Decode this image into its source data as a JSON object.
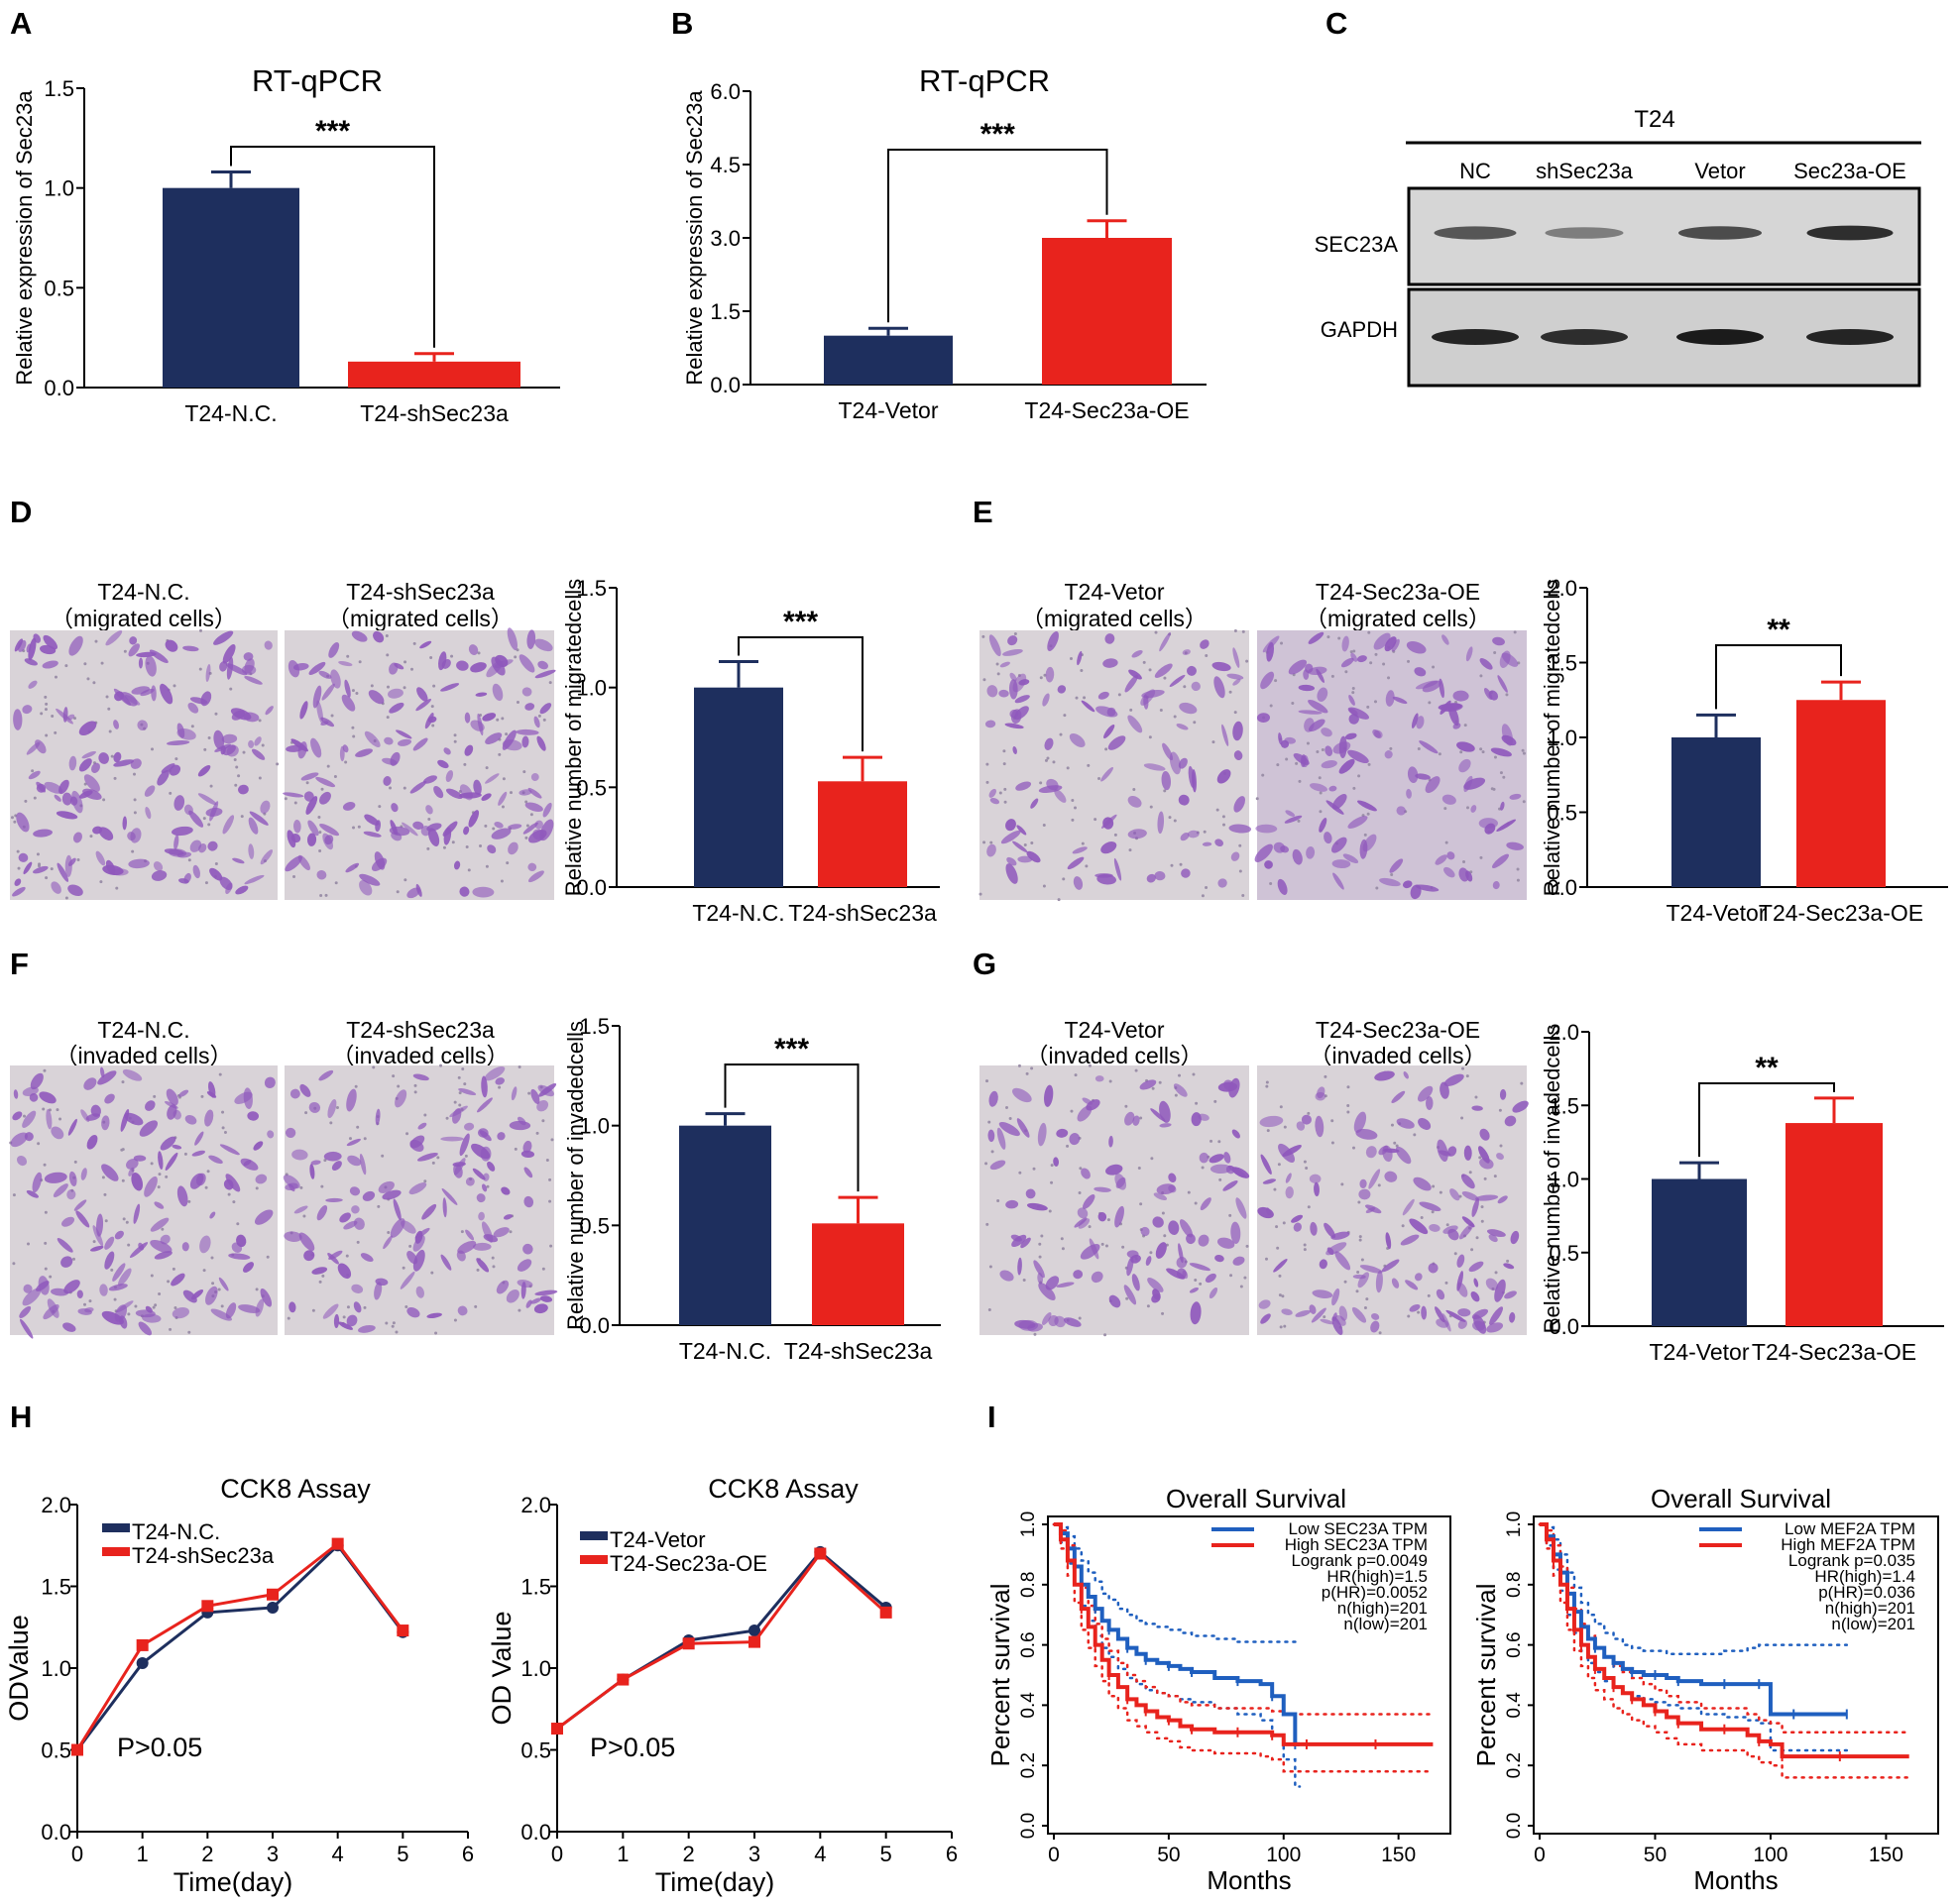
{
  "panel_labels": [
    "A",
    "B",
    "C",
    "D",
    "E",
    "F",
    "G",
    "H",
    "I"
  ],
  "colors": {
    "navy": "#1e2f5e",
    "red": "#e8231d",
    "blue": "#1f5fbf",
    "stain": "#8f58bc",
    "bg": "#d9d3d8"
  },
  "micrographs": {
    "D1": {
      "title": "T24-N.C.",
      "sub": "（migrated cells）"
    },
    "D2": {
      "title": "T24-shSec23a",
      "sub": "（migrated cells）"
    },
    "E1": {
      "title": "T24-Vetor",
      "sub": "（migrated cells）"
    },
    "E2": {
      "title": "T24-Sec23a-OE",
      "sub": "（migrated cells）"
    },
    "F1": {
      "title": "T24-N.C.",
      "sub": "（invaded cells）"
    },
    "F2": {
      "title": "T24-shSec23a",
      "sub": "（invaded cells）"
    },
    "G1": {
      "title": "T24-Vetor",
      "sub": "（invaded cells）"
    },
    "G2": {
      "title": "T24-Sec23a-OE",
      "sub": "（invaded cells）"
    }
  },
  "western_blot": {
    "cell_line": "T24",
    "lanes": [
      "NC",
      "shSec23a",
      "Vetor",
      "Sec23a-OE"
    ],
    "rows": [
      {
        "protein": "SEC23A",
        "intensity": [
          0.65,
          0.45,
          0.7,
          0.85
        ]
      },
      {
        "protein": "GAPDH",
        "intensity": [
          0.9,
          0.85,
          0.95,
          0.9
        ]
      }
    ]
  },
  "chart_data": [
    {
      "id": "A",
      "type": "bar",
      "title": "RT-qPCR",
      "ylabel": "Relative expression of Sec23a",
      "categories": [
        "T24-N.C.",
        "T24-shSec23a"
      ],
      "values": [
        1.0,
        0.13
      ],
      "errors": [
        0.08,
        0.04
      ],
      "colors": [
        "#1e2f5e",
        "#e8231d"
      ],
      "ylim": [
        0,
        1.5
      ],
      "yticks": [
        "0.0",
        "0.5",
        "1.0",
        "1.5"
      ],
      "significance": "***"
    },
    {
      "id": "B",
      "type": "bar",
      "title": "RT-qPCR",
      "ylabel": "Relative expression of Sec23a",
      "categories": [
        "T24-Vetor",
        "T24-Sec23a-OE"
      ],
      "values": [
        1.0,
        3.0
      ],
      "errors": [
        0.15,
        0.35
      ],
      "colors": [
        "#1e2f5e",
        "#e8231d"
      ],
      "ylim": [
        0,
        6.0
      ],
      "yticks": [
        "0.0",
        "1.5",
        "3.0",
        "4.5",
        "6.0"
      ],
      "significance": "***"
    },
    {
      "id": "D",
      "type": "bar",
      "title": "",
      "ylabel": "Relative number of migratedcells",
      "categories": [
        "T24-N.C.",
        "T24-shSec23a"
      ],
      "values": [
        1.0,
        0.53
      ],
      "errors": [
        0.13,
        0.12
      ],
      "colors": [
        "#1e2f5e",
        "#e8231d"
      ],
      "ylim": [
        0,
        1.5
      ],
      "yticks": [
        "0.0",
        "0.5",
        "1.0",
        "1.5"
      ],
      "significance": "***"
    },
    {
      "id": "E",
      "type": "bar",
      "title": "",
      "ylabel": "Relative number of migratedcells",
      "categories": [
        "T24-Vetor",
        "T24-Sec23a-OE"
      ],
      "values": [
        1.0,
        1.25
      ],
      "errors": [
        0.15,
        0.12
      ],
      "colors": [
        "#1e2f5e",
        "#e8231d"
      ],
      "ylim": [
        0,
        2.0
      ],
      "yticks": [
        "0.0",
        "0.5",
        "1.0",
        "1.5",
        "2.0"
      ],
      "significance": "**"
    },
    {
      "id": "F",
      "type": "bar",
      "title": "",
      "ylabel": "Relative number of invadedcells",
      "categories": [
        "T24-N.C.",
        "T24-shSec23a"
      ],
      "values": [
        1.0,
        0.51
      ],
      "errors": [
        0.06,
        0.13
      ],
      "colors": [
        "#1e2f5e",
        "#e8231d"
      ],
      "ylim": [
        0,
        1.5
      ],
      "yticks": [
        "0.0",
        "0.5",
        "1.0",
        "1.5"
      ],
      "significance": "***"
    },
    {
      "id": "G",
      "type": "bar",
      "title": "",
      "ylabel": "Relative number of invadedcells",
      "categories": [
        "T24-Vetor",
        "T24-Sec23a-OE"
      ],
      "values": [
        1.0,
        1.38
      ],
      "errors": [
        0.11,
        0.17
      ],
      "colors": [
        "#1e2f5e",
        "#e8231d"
      ],
      "ylim": [
        0,
        2.0
      ],
      "yticks": [
        "0.0",
        "0.5",
        "1.0",
        "1.5",
        "2.0"
      ],
      "significance": "**"
    },
    {
      "id": "H1",
      "type": "line",
      "title": "CCK8  Assay",
      "xlabel": "Time(day)",
      "ylabel": "ODValue",
      "x": [
        0,
        1,
        2,
        3,
        4,
        5
      ],
      "xlim": [
        0,
        6
      ],
      "ylim": [
        0,
        2.0
      ],
      "xticks": [
        "0",
        "1",
        "2",
        "3",
        "4",
        "5",
        "6"
      ],
      "yticks": [
        "0.0",
        "0.5",
        "1.0",
        "1.5",
        "2.0"
      ],
      "series": [
        {
          "name": "T24-N.C.",
          "color": "#1e2f5e",
          "values": [
            0.5,
            1.03,
            1.34,
            1.37,
            1.75,
            1.22
          ]
        },
        {
          "name": "T24-shSec23a",
          "color": "#e8231d",
          "values": [
            0.5,
            1.14,
            1.38,
            1.45,
            1.76,
            1.23
          ]
        }
      ],
      "annotation": "P>0.05"
    },
    {
      "id": "H2",
      "type": "line",
      "title": "CCK8  Assay",
      "xlabel": "Time(day)",
      "ylabel": "OD Value",
      "x": [
        0,
        1,
        2,
        3,
        4,
        5
      ],
      "xlim": [
        0,
        6
      ],
      "ylim": [
        0,
        2.0
      ],
      "xticks": [
        "0",
        "1",
        "2",
        "3",
        "4",
        "5",
        "6"
      ],
      "yticks": [
        "0.0",
        "0.5",
        "1.0",
        "1.5",
        "2.0"
      ],
      "series": [
        {
          "name": "T24-Vetor",
          "color": "#1e2f5e",
          "values": [
            0.63,
            0.93,
            1.17,
            1.23,
            1.71,
            1.37
          ]
        },
        {
          "name": "T24-Sec23a-OE",
          "color": "#e8231d",
          "values": [
            0.63,
            0.93,
            1.15,
            1.16,
            1.7,
            1.34
          ]
        }
      ],
      "annotation": "P>0.05"
    },
    {
      "id": "I1",
      "type": "line",
      "subtype": "kaplan-meier",
      "title": "Overall Survival",
      "xlabel": "Months",
      "ylabel": "Percent survival",
      "xlim": [
        0,
        170
      ],
      "ylim": [
        0,
        1.0
      ],
      "xticks": [
        "0",
        "50",
        "100",
        "150"
      ],
      "yticks": [
        "0.0",
        "0.2",
        "0.4",
        "0.6",
        "0.8",
        "1.0"
      ],
      "legend": [
        "Low SEC23A TPM",
        "High SEC23A TPM"
      ],
      "stats": [
        "Logrank p=0.0049",
        "HR(high)=1.5",
        "p(HR)=0.0052",
        "n(high)=201",
        "n(low)=201"
      ],
      "series": [
        {
          "name": "Low SEC23A TPM",
          "color": "#1f5fbf",
          "x": [
            0,
            3,
            6,
            9,
            12,
            15,
            18,
            21,
            24,
            28,
            32,
            36,
            40,
            45,
            50,
            55,
            60,
            70,
            80,
            90,
            95,
            100,
            105,
            107
          ],
          "values": [
            1.0,
            0.97,
            0.92,
            0.86,
            0.8,
            0.76,
            0.72,
            0.68,
            0.65,
            0.62,
            0.59,
            0.57,
            0.55,
            0.54,
            0.53,
            0.52,
            0.51,
            0.49,
            0.48,
            0.47,
            0.43,
            0.37,
            0.27,
            0.27
          ],
          "upper": [
            1.0,
            0.99,
            0.96,
            0.92,
            0.88,
            0.84,
            0.81,
            0.77,
            0.75,
            0.72,
            0.7,
            0.68,
            0.67,
            0.66,
            0.65,
            0.64,
            0.63,
            0.62,
            0.61,
            0.61,
            0.61,
            0.61,
            0.61,
            0.61
          ],
          "lower": [
            1.0,
            0.94,
            0.87,
            0.8,
            0.73,
            0.68,
            0.63,
            0.59,
            0.56,
            0.52,
            0.49,
            0.47,
            0.45,
            0.44,
            0.43,
            0.42,
            0.41,
            0.39,
            0.37,
            0.35,
            0.3,
            0.22,
            0.13,
            0.13
          ]
        },
        {
          "name": "High SEC23A TPM",
          "color": "#e8231d",
          "x": [
            0,
            3,
            6,
            9,
            12,
            15,
            18,
            21,
            24,
            28,
            32,
            36,
            40,
            45,
            50,
            55,
            60,
            70,
            80,
            90,
            95,
            100,
            110,
            120,
            140,
            165
          ],
          "values": [
            1.0,
            0.95,
            0.88,
            0.8,
            0.72,
            0.66,
            0.6,
            0.55,
            0.5,
            0.46,
            0.42,
            0.4,
            0.38,
            0.36,
            0.35,
            0.33,
            0.32,
            0.31,
            0.31,
            0.31,
            0.3,
            0.27,
            0.27,
            0.27,
            0.27,
            0.27
          ],
          "upper": [
            1.0,
            0.98,
            0.93,
            0.86,
            0.79,
            0.73,
            0.67,
            0.62,
            0.58,
            0.54,
            0.5,
            0.48,
            0.46,
            0.44,
            0.43,
            0.41,
            0.4,
            0.39,
            0.39,
            0.39,
            0.38,
            0.37,
            0.37,
            0.37,
            0.37,
            0.37
          ],
          "lower": [
            1.0,
            0.92,
            0.83,
            0.74,
            0.65,
            0.59,
            0.53,
            0.48,
            0.43,
            0.39,
            0.35,
            0.33,
            0.31,
            0.29,
            0.28,
            0.26,
            0.25,
            0.24,
            0.24,
            0.23,
            0.22,
            0.18,
            0.18,
            0.18,
            0.18,
            0.18
          ]
        }
      ]
    },
    {
      "id": "I2",
      "type": "line",
      "subtype": "kaplan-meier",
      "title": "Overall Survival",
      "xlabel": "Months",
      "ylabel": "Percent survival",
      "xlim": [
        0,
        170
      ],
      "ylim": [
        0,
        1.0
      ],
      "xticks": [
        "0",
        "50",
        "100",
        "150"
      ],
      "yticks": [
        "0.0",
        "0.2",
        "0.4",
        "0.6",
        "0.8",
        "1.0"
      ],
      "legend": [
        "Low MEF2A TPM",
        "High MEF2A TPM"
      ],
      "stats": [
        "Logrank p=0.035",
        "HR(high)=1.4",
        "p(HR)=0.036",
        "n(high)=201",
        "n(low)=201"
      ],
      "series": [
        {
          "name": "Low MEF2A TPM",
          "color": "#1f5fbf",
          "x": [
            0,
            3,
            6,
            9,
            12,
            15,
            18,
            21,
            24,
            28,
            32,
            36,
            40,
            45,
            50,
            55,
            60,
            70,
            80,
            90,
            95,
            100,
            110,
            120,
            133
          ],
          "values": [
            1.0,
            0.96,
            0.9,
            0.84,
            0.77,
            0.71,
            0.66,
            0.62,
            0.59,
            0.56,
            0.54,
            0.52,
            0.51,
            0.5,
            0.5,
            0.49,
            0.48,
            0.47,
            0.47,
            0.47,
            0.47,
            0.37,
            0.37,
            0.37,
            0.37
          ],
          "upper": [
            1.0,
            0.99,
            0.95,
            0.9,
            0.84,
            0.79,
            0.74,
            0.7,
            0.67,
            0.64,
            0.62,
            0.6,
            0.59,
            0.58,
            0.58,
            0.57,
            0.57,
            0.57,
            0.58,
            0.59,
            0.6,
            0.6,
            0.6,
            0.6,
            0.6
          ],
          "lower": [
            1.0,
            0.93,
            0.85,
            0.78,
            0.7,
            0.64,
            0.58,
            0.54,
            0.51,
            0.48,
            0.46,
            0.44,
            0.43,
            0.42,
            0.41,
            0.4,
            0.39,
            0.37,
            0.36,
            0.35,
            0.34,
            0.25,
            0.25,
            0.25,
            0.25
          ]
        },
        {
          "name": "High MEF2A TPM",
          "color": "#e8231d",
          "x": [
            0,
            3,
            6,
            9,
            12,
            15,
            18,
            21,
            24,
            28,
            32,
            36,
            40,
            45,
            50,
            55,
            60,
            70,
            80,
            90,
            95,
            100,
            105,
            110,
            130,
            160
          ],
          "values": [
            1.0,
            0.95,
            0.88,
            0.8,
            0.72,
            0.65,
            0.6,
            0.56,
            0.52,
            0.49,
            0.46,
            0.44,
            0.42,
            0.4,
            0.38,
            0.36,
            0.34,
            0.32,
            0.32,
            0.3,
            0.28,
            0.27,
            0.23,
            0.23,
            0.23,
            0.23
          ],
          "upper": [
            1.0,
            0.98,
            0.93,
            0.86,
            0.79,
            0.72,
            0.67,
            0.63,
            0.59,
            0.56,
            0.53,
            0.51,
            0.49,
            0.47,
            0.45,
            0.43,
            0.41,
            0.39,
            0.39,
            0.37,
            0.35,
            0.34,
            0.31,
            0.31,
            0.31,
            0.31
          ],
          "lower": [
            1.0,
            0.92,
            0.83,
            0.74,
            0.65,
            0.58,
            0.53,
            0.49,
            0.45,
            0.42,
            0.39,
            0.37,
            0.35,
            0.33,
            0.31,
            0.29,
            0.27,
            0.25,
            0.25,
            0.23,
            0.21,
            0.2,
            0.16,
            0.16,
            0.16,
            0.16
          ]
        }
      ]
    }
  ]
}
